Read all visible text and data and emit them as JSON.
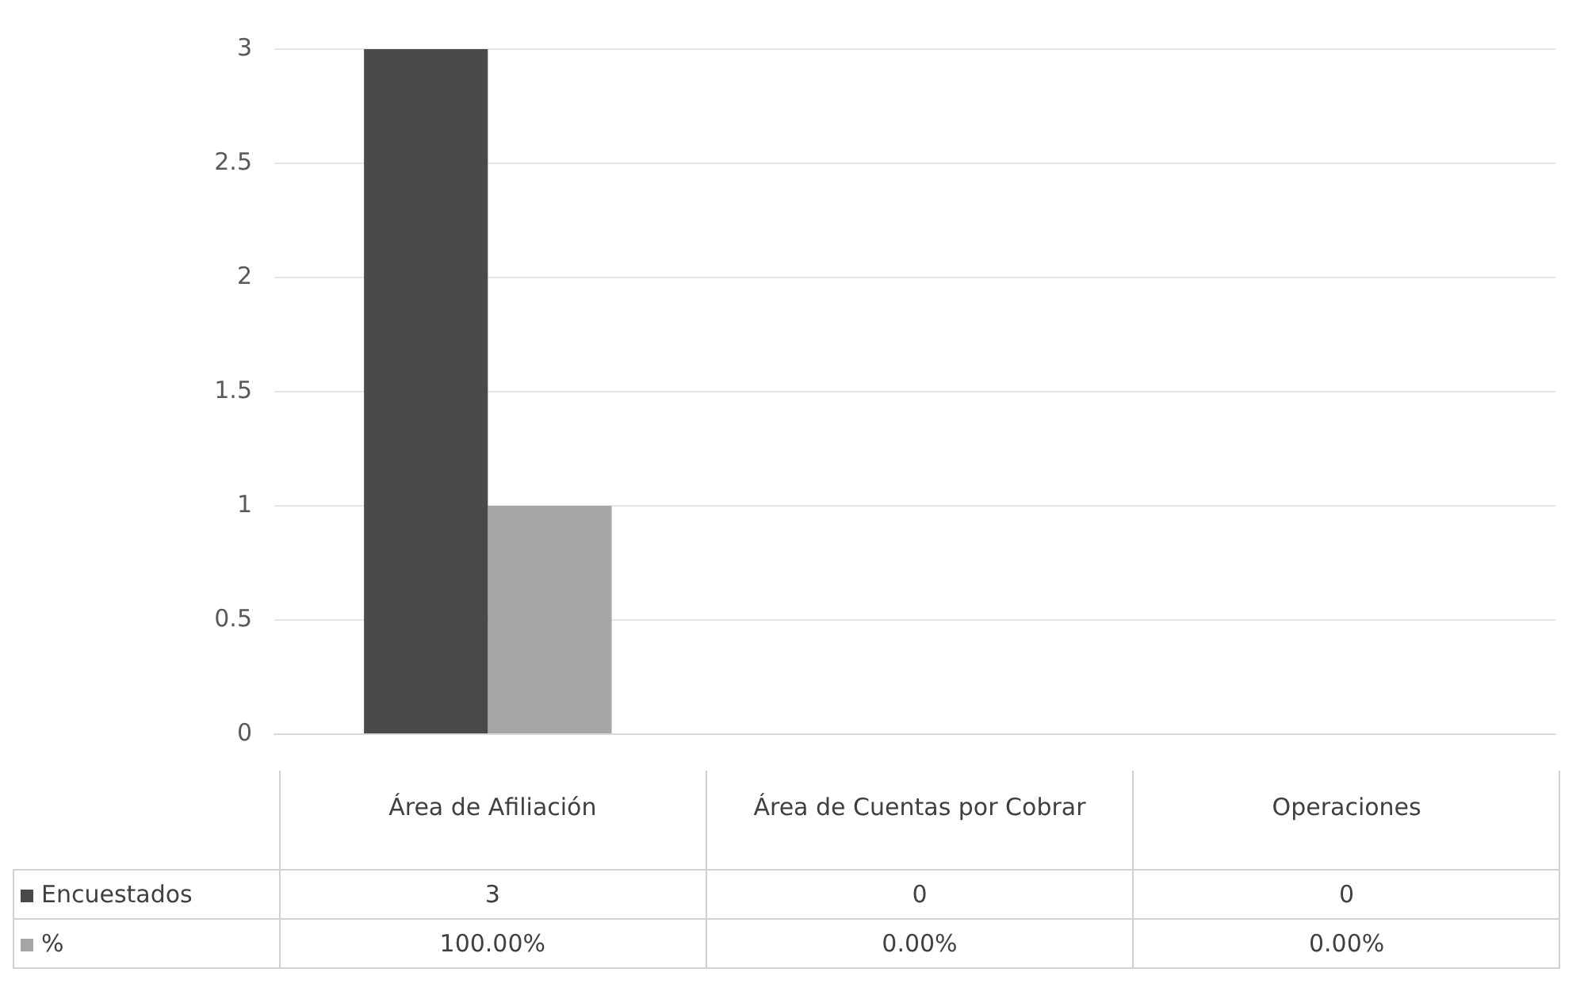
{
  "chart_data": {
    "type": "bar",
    "categories": [
      "Área de Afiliación",
      "Área de Cuentas por Cobrar",
      "Operaciones"
    ],
    "series": [
      {
        "name": "Encuestados",
        "color": "#4a4a4a",
        "values": [
          3,
          0,
          0
        ],
        "value_labels": [
          "3",
          "0",
          "0"
        ]
      },
      {
        "name": "%",
        "color": "#a6a6a6",
        "values": [
          1,
          0,
          0
        ],
        "value_labels": [
          "100.00%",
          "0.00%",
          "0.00%"
        ]
      }
    ],
    "ylim": [
      0,
      3
    ],
    "yticks": [
      0,
      0.5,
      1,
      1.5,
      2,
      2.5,
      3
    ],
    "grid": "y",
    "legend": "bottom"
  }
}
